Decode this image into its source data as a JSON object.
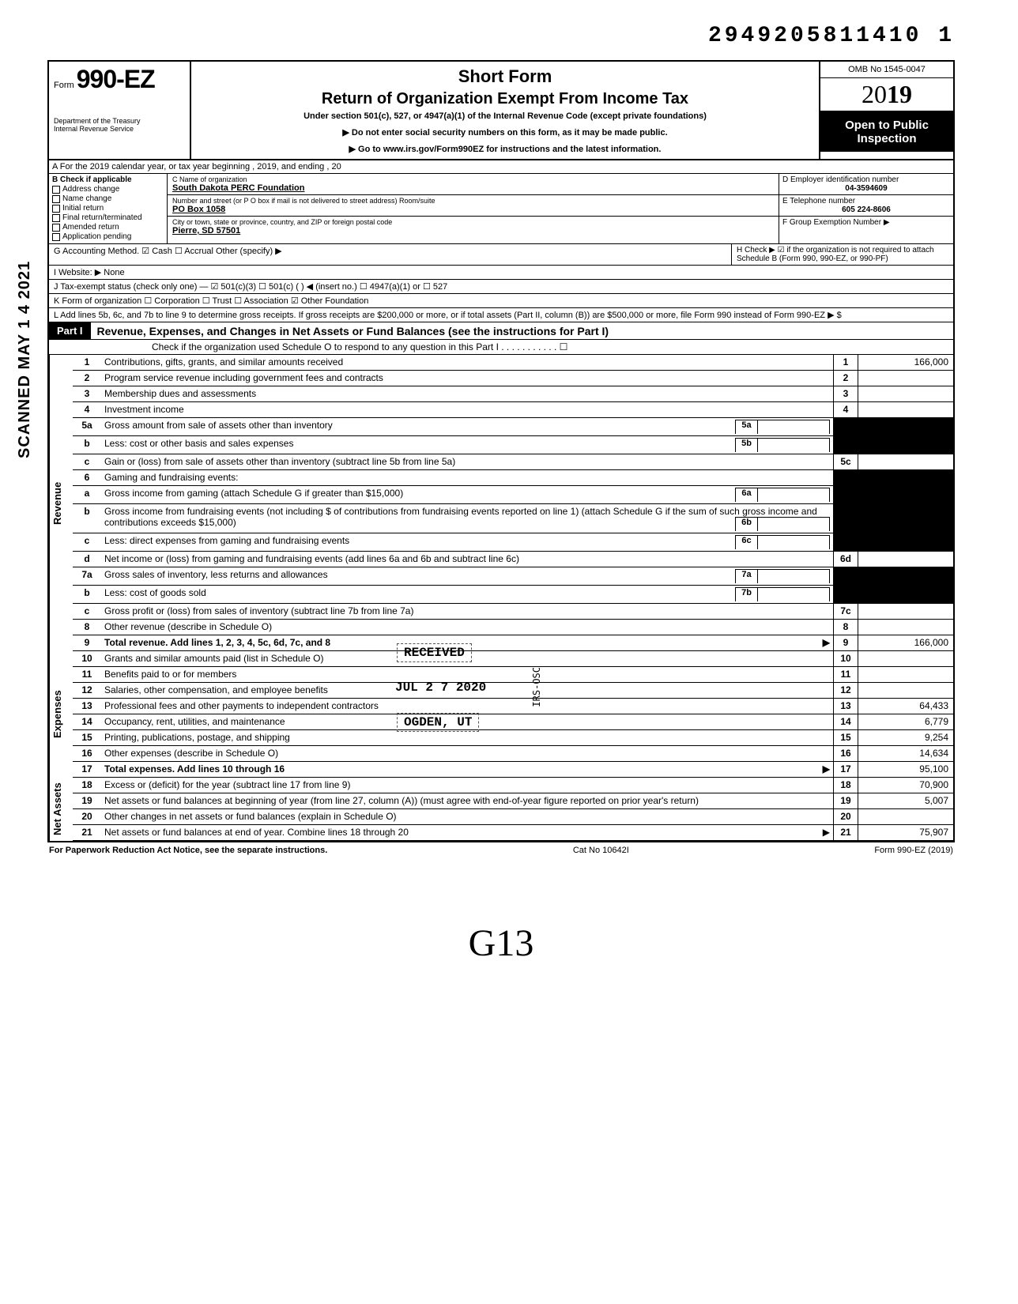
{
  "topnumber": "2949205811410 1",
  "form": {
    "prefix": "Form",
    "number": "990-EZ",
    "dept1": "Department of the Treasury",
    "dept2": "Internal Revenue Service"
  },
  "header": {
    "short": "Short Form",
    "title": "Return of Organization Exempt From Income Tax",
    "under": "Under section 501(c), 527, or 4947(a)(1) of the Internal Revenue Code (except private foundations)",
    "arrow1": "▶ Do not enter social security numbers on this form, as it may be made public.",
    "arrow2": "▶ Go to www.irs.gov/Form990EZ for instructions and the latest information.",
    "omb": "OMB No 1545-0047",
    "year_prefix": "20",
    "year_bold": "19",
    "open": "Open to Public Inspection"
  },
  "rowA": "A For the 2019 calendar year, or tax year beginning                                                    , 2019, and ending                                          , 20",
  "B": {
    "label": "B  Check if applicable",
    "opts": [
      "Address change",
      "Name change",
      "Initial return",
      "Final return/terminated",
      "Amended return",
      "Application pending"
    ]
  },
  "C": {
    "lbl_name": "C Name of organization",
    "name": "South Dakota PERC Foundation",
    "lbl_addr": "Number and street (or P O  box if mail is not delivered to street address)                         Room/suite",
    "addr": "PO Box 1058",
    "lbl_city": "City or town, state or province, country, and ZIP or foreign postal code",
    "city": "Pierre, SD  57501"
  },
  "DE": {
    "d_lbl": "D Employer identification number",
    "d_val": "04-3594609",
    "e_lbl": "E Telephone number",
    "e_val": "605 224-8606",
    "f_lbl": "F Group Exemption Number ▶"
  },
  "G": "G Accounting Method.   ☑ Cash   ☐ Accrual   Other (specify) ▶",
  "H": "H Check ▶ ☑ if the organization is not required to attach Schedule B (Form 990, 990-EZ, or 990-PF)",
  "I": "I  Website: ▶     None",
  "J": "J Tax-exempt status (check only one) — ☑ 501(c)(3)   ☐ 501(c) (        ) ◀ (insert no.)  ☐ 4947(a)(1) or   ☐ 527",
  "K": "K Form of organization    ☐ Corporation    ☐ Trust    ☐ Association    ☑ Other  Foundation",
  "L": "L Add lines 5b, 6c, and 7b to line 9 to determine gross receipts. If gross receipts are $200,000 or more, or if total assets (Part II, column (B)) are $500,000 or more, file Form 990 instead of Form 990-EZ                          ▶  $",
  "part1": {
    "lbl": "Part I",
    "title": "Revenue, Expenses, and Changes in Net Assets or Fund Balances (see the instructions for Part I)",
    "sub": "Check if the organization used Schedule O to respond to any question in this Part I . . . . . . . . . . . ☐"
  },
  "sides": {
    "rev": "Revenue",
    "exp": "Expenses",
    "net": "Net Assets"
  },
  "lines": {
    "1": {
      "n": "1",
      "t": "Contributions, gifts, grants, and similar amounts received",
      "rn": "1",
      "v": "166,000"
    },
    "2": {
      "n": "2",
      "t": "Program service revenue including government fees and contracts",
      "rn": "2",
      "v": ""
    },
    "3": {
      "n": "3",
      "t": "Membership dues and assessments",
      "rn": "3",
      "v": ""
    },
    "4": {
      "n": "4",
      "t": "Investment income",
      "rn": "4",
      "v": ""
    },
    "5a": {
      "n": "5a",
      "t": "Gross amount from sale of assets other than inventory",
      "ib": "5a"
    },
    "5b": {
      "n": "b",
      "t": "Less: cost or other basis and sales expenses",
      "ib": "5b"
    },
    "5c": {
      "n": "c",
      "t": "Gain or (loss) from sale of assets other than inventory (subtract line 5b from line 5a)",
      "rn": "5c",
      "v": ""
    },
    "6": {
      "n": "6",
      "t": "Gaming and fundraising events:"
    },
    "6a": {
      "n": "a",
      "t": "Gross income from gaming (attach Schedule G if greater than $15,000)",
      "ib": "6a"
    },
    "6b": {
      "n": "b",
      "t": "Gross income from fundraising events (not including  $                     of contributions from fundraising events reported on line 1) (attach Schedule G if the sum of such gross income and contributions exceeds $15,000)",
      "ib": "6b"
    },
    "6c": {
      "n": "c",
      "t": "Less: direct expenses from gaming and fundraising events",
      "ib": "6c"
    },
    "6d": {
      "n": "d",
      "t": "Net income or (loss) from gaming and fundraising events (add lines 6a and 6b and subtract line 6c)",
      "rn": "6d",
      "v": ""
    },
    "7a": {
      "n": "7a",
      "t": "Gross sales of inventory, less returns and allowances",
      "ib": "7a"
    },
    "7b": {
      "n": "b",
      "t": "Less: cost of goods sold",
      "ib": "7b"
    },
    "7c": {
      "n": "c",
      "t": "Gross profit or (loss) from sales of inventory (subtract line 7b from line 7a)",
      "rn": "7c",
      "v": ""
    },
    "8": {
      "n": "8",
      "t": "Other revenue (describe in Schedule O)",
      "rn": "8",
      "v": ""
    },
    "9": {
      "n": "9",
      "t": "Total revenue. Add lines 1, 2, 3, 4, 5c, 6d, 7c, and 8",
      "rn": "9",
      "v": "166,000",
      "arrow": true,
      "bold": true
    },
    "10": {
      "n": "10",
      "t": "Grants and similar amounts paid (list in Schedule O)",
      "rn": "10",
      "v": ""
    },
    "11": {
      "n": "11",
      "t": "Benefits paid to or for members",
      "rn": "11",
      "v": ""
    },
    "12": {
      "n": "12",
      "t": "Salaries, other compensation, and employee benefits",
      "rn": "12",
      "v": ""
    },
    "13": {
      "n": "13",
      "t": "Professional fees and other payments to independent contractors",
      "rn": "13",
      "v": "64,433"
    },
    "14": {
      "n": "14",
      "t": "Occupancy, rent, utilities, and maintenance",
      "rn": "14",
      "v": "6,779"
    },
    "15": {
      "n": "15",
      "t": "Printing, publications, postage, and shipping",
      "rn": "15",
      "v": "9,254"
    },
    "16": {
      "n": "16",
      "t": "Other expenses (describe in Schedule O)",
      "rn": "16",
      "v": "14,634"
    },
    "17": {
      "n": "17",
      "t": "Total expenses. Add lines 10 through 16",
      "rn": "17",
      "v": "95,100",
      "arrow": true,
      "bold": true
    },
    "18": {
      "n": "18",
      "t": "Excess or (deficit) for the year (subtract line 17 from line 9)",
      "rn": "18",
      "v": "70,900"
    },
    "19": {
      "n": "19",
      "t": "Net assets or fund balances at beginning of year (from line 27, column (A)) (must agree with end-of-year figure reported on prior year's return)",
      "rn": "19",
      "v": "5,007"
    },
    "20": {
      "n": "20",
      "t": "Other changes in net assets or fund balances (explain in Schedule O)",
      "rn": "20",
      "v": ""
    },
    "21": {
      "n": "21",
      "t": "Net assets or fund balances at end of year. Combine lines 18 through 20",
      "rn": "21",
      "v": "75,907",
      "arrow": true
    }
  },
  "stamps": {
    "scan": "SCANNED MAY 1 4 2021",
    "received": "RECEIVED",
    "jul": "JUL  2 7 2020",
    "ogden": "OGDEN, UT",
    "irs": "IRS-OSC"
  },
  "footer": {
    "left": "For Paperwork Reduction Act Notice, see the separate instructions.",
    "mid": "Cat No 10642I",
    "right": "Form 990-EZ (2019)"
  },
  "handwrite": "G13"
}
